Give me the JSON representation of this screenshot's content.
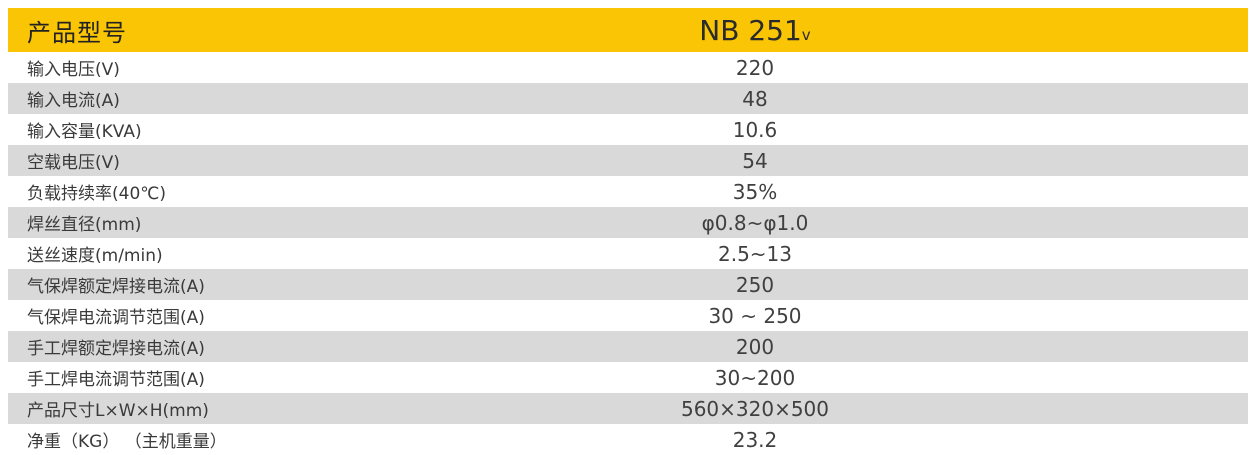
{
  "table": {
    "header": {
      "label": "产品型号",
      "model": "NB 251",
      "model_suffix": "v"
    },
    "colors": {
      "header_bg": "#F9C504",
      "row_bg": "#FFFFFF",
      "row_alt_bg": "#D9D9D9",
      "header_text": "#222222",
      "row_text": "#3A3A3A"
    },
    "rows": [
      {
        "label": "输入电压(V)",
        "value": "220"
      },
      {
        "label": "输入电流(A)",
        "value": "48"
      },
      {
        "label": "输入容量(KVA)",
        "value": "10.6"
      },
      {
        "label": "空载电压(V)",
        "value": "54"
      },
      {
        "label": "负载持续率(40℃)",
        "value": "35%"
      },
      {
        "label": "焊丝直径(mm)",
        "value": "φ0.8~φ1.0"
      },
      {
        "label": "送丝速度(m/min)",
        "value": "2.5~13"
      },
      {
        "label": "气保焊额定焊接电流(A)",
        "value": "250"
      },
      {
        "label": "气保焊电流调节范围(A)",
        "value": "30 ~ 250"
      },
      {
        "label": "手工焊额定焊接电流(A)",
        "value": "200"
      },
      {
        "label": "手工焊电流调节范围(A)",
        "value": "30~200"
      },
      {
        "label": "产品尺寸L×W×H(mm)",
        "value": "560×320×500"
      },
      {
        "label": "净重（KG） （主机重量）",
        "value": "23.2"
      }
    ]
  }
}
